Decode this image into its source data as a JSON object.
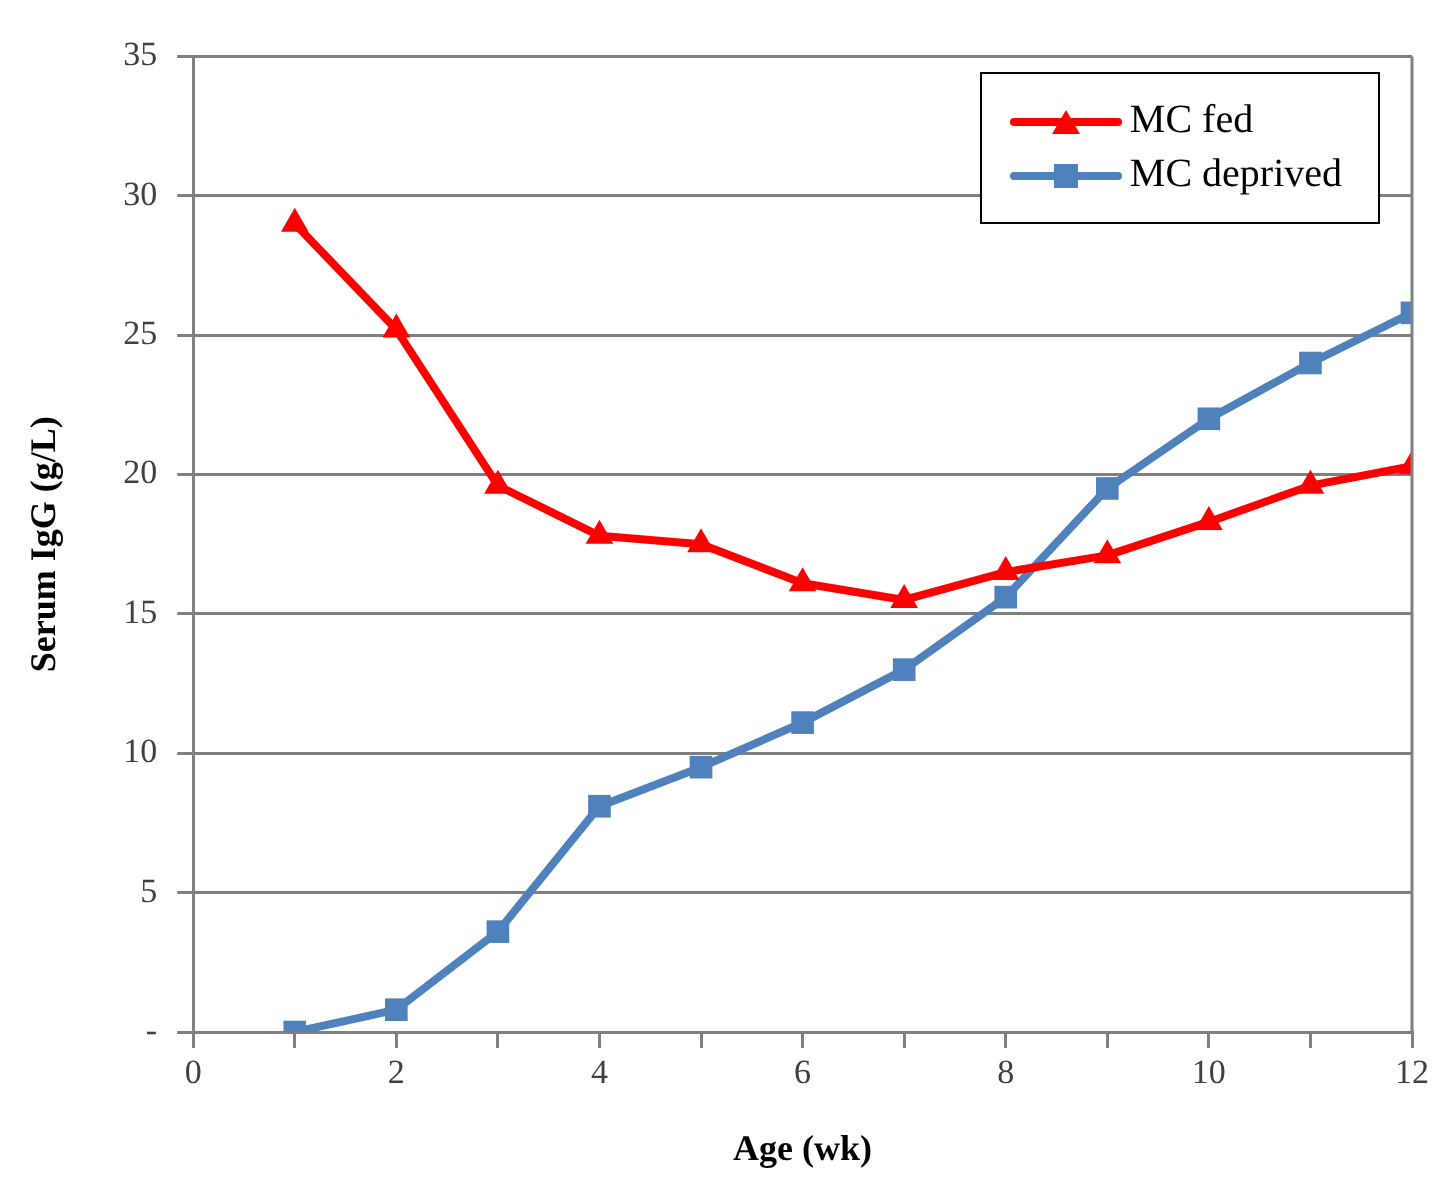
{
  "chart_data": {
    "type": "line",
    "xlabel": "Age (wk)",
    "ylabel": "Serum IgG (g/L)",
    "x": [
      1,
      2,
      3,
      4,
      5,
      6,
      7,
      8,
      9,
      10,
      11,
      12
    ],
    "series": [
      {
        "name": "MC fed",
        "color": "#ff0000",
        "marker": "triangle",
        "values": [
          29.0,
          25.2,
          19.6,
          17.8,
          17.5,
          16.1,
          15.5,
          16.5,
          17.1,
          18.3,
          19.6,
          20.3
        ]
      },
      {
        "name": "MC deprived",
        "color": "#4f81bd",
        "marker": "square",
        "values": [
          0,
          0.8,
          3.6,
          8.1,
          9.5,
          11.1,
          13.0,
          15.6,
          19.5,
          22.0,
          24.0,
          25.8
        ]
      }
    ],
    "xlim": [
      0,
      12
    ],
    "xticks": [
      0,
      {
        "value": 1,
        "label": null
      },
      2,
      {
        "value": 3,
        "label": null
      },
      4,
      {
        "value": 5,
        "label": null
      },
      6,
      {
        "value": 7,
        "label": null
      },
      8,
      {
        "value": 9,
        "label": null
      },
      10,
      {
        "value": 11,
        "label": null
      },
      12
    ],
    "ylim": [
      0,
      35
    ],
    "yticks": [
      {
        "value": 0,
        "label": "-"
      },
      5,
      10,
      15,
      20,
      25,
      30,
      35
    ],
    "grid": "y",
    "legend": "top right",
    "line_style": "solid"
  }
}
